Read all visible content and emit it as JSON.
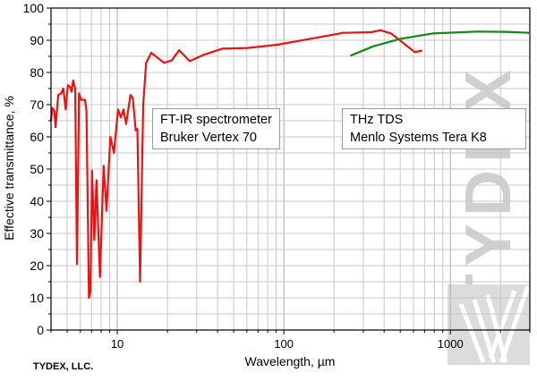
{
  "chart_data": {
    "type": "line",
    "xlabel": "Wavelength, µm",
    "ylabel": "Effective transmittance, %",
    "xscale": "log",
    "xlim": [
      4,
      3000
    ],
    "ylim": [
      0,
      100
    ],
    "grid": true,
    "xticks": [
      10,
      100,
      1000
    ],
    "yticks": [
      0,
      10,
      20,
      30,
      40,
      50,
      60,
      70,
      80,
      90,
      100
    ],
    "series": [
      {
        "name": "FT-IR spectrometer Bruker Vertex 70",
        "color": "#ee1111",
        "x": [
          4.0,
          4.07,
          4.19,
          4.26,
          4.42,
          4.6,
          4.74,
          4.9,
          5.05,
          5.21,
          5.32,
          5.43,
          5.59,
          5.73,
          5.89,
          6.07,
          6.4,
          6.53,
          6.76,
          6.9,
          7.05,
          7.28,
          7.5,
          7.87,
          8.28,
          8.62,
          9.09,
          9.55,
          10.1,
          10.5,
          10.9,
          11.3,
          12.0,
          12.4,
          12.9,
          13.2,
          13.7,
          14.3,
          14.9,
          16.0,
          19.1,
          21.2,
          23.5,
          27.2,
          32.7,
          42.7,
          60.7,
          91.6,
          150,
          227,
          335,
          381,
          440,
          497,
          611,
          676
        ],
        "y": [
          65,
          69,
          68,
          63,
          73,
          73.5,
          75,
          68.5,
          76,
          75.5,
          74,
          77.5,
          75,
          20.5,
          73.5,
          71.5,
          71.5,
          68,
          10,
          12,
          49.5,
          28,
          46.5,
          16.5,
          51,
          37,
          60,
          55,
          68.5,
          66,
          68.5,
          64,
          73,
          72,
          62,
          62.5,
          15,
          70,
          83,
          86.1,
          83,
          83.7,
          86.9,
          83.5,
          85.4,
          87.4,
          87.6,
          88.6,
          90.6,
          92.3,
          92.5,
          93.1,
          92.1,
          90,
          86.3,
          86.8
        ]
      },
      {
        "name": "THz TDS Menlo Systems Tera K8",
        "color": "#118811",
        "x": [
          251,
          344,
          497,
          783,
          1445,
          2180,
          2970
        ],
        "y": [
          85.2,
          88.1,
          90.4,
          92.1,
          92.7,
          92.6,
          92.3
        ]
      }
    ],
    "legends": [
      {
        "lines": [
          "FT-IR spectrometer",
          "Bruker Vertex 70"
        ]
      },
      {
        "lines": [
          "THz TDS",
          "Menlo Systems Tera K8"
        ]
      }
    ],
    "watermark": "TYDEX",
    "footer": "TYDEX, LLC."
  }
}
